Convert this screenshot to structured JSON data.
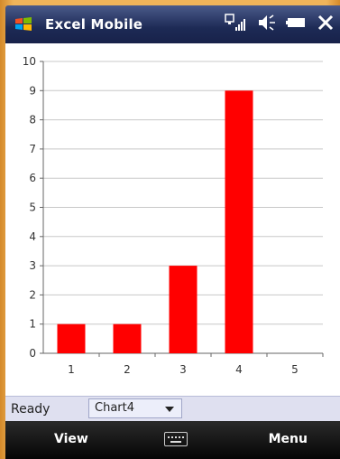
{
  "app": {
    "title": "Excel Mobile"
  },
  "icons": {
    "start": "windows-start-icon",
    "signal": "signal-icon",
    "volume": "volume-icon",
    "battery": "battery-icon",
    "close": "close-icon",
    "keyboard": "keyboard-icon"
  },
  "chart_data": {
    "type": "bar",
    "categories": [
      "1",
      "2",
      "3",
      "4",
      "5"
    ],
    "values": [
      1,
      1,
      3,
      9,
      0
    ],
    "ylim": [
      0,
      10
    ],
    "yticks": [
      0,
      1,
      2,
      3,
      4,
      5,
      6,
      7,
      8,
      9,
      10
    ],
    "bar_color": "#ff0000",
    "grid": true,
    "title": "",
    "xlabel": "",
    "ylabel": ""
  },
  "statusbar": {
    "status": "Ready",
    "sheet_selected": "Chart4"
  },
  "softkeys": {
    "left": "View",
    "right": "Menu"
  }
}
